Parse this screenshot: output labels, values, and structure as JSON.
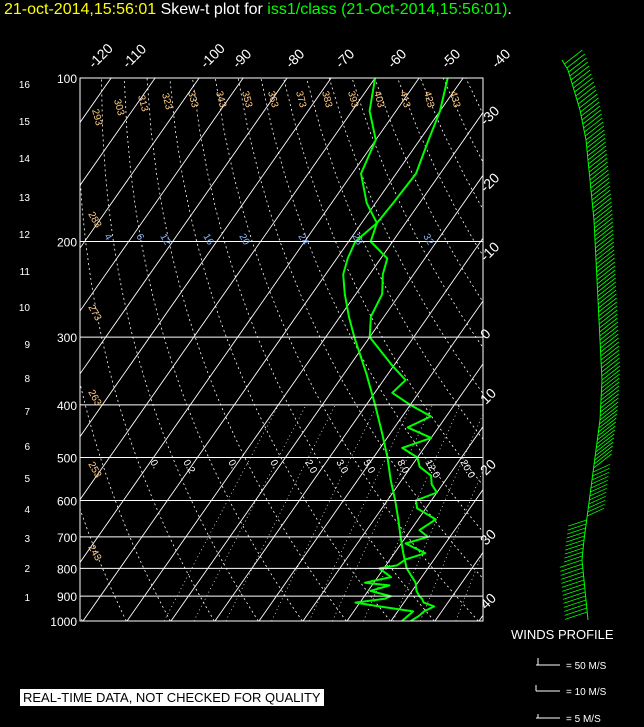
{
  "header": {
    "date_prefix": "21-oct-2014,15:56:01",
    "title_middle": "Skew-t plot for",
    "station_desc": "iss1/class (21-Oct-2014,15:56:01)",
    "period": "."
  },
  "winds": {
    "title": "WINDS PROFILE",
    "legend": [
      "= 50 M/S",
      "= 10 M/S",
      "= 5 M/S"
    ]
  },
  "disclaimer": "REAL-TIME DATA, NOT CHECKED FOR QUALITY",
  "colors": {
    "background": "#000000",
    "trace": "#00ff00",
    "grid": "#ffffff",
    "mixing": "#8ab4ff",
    "potential": "#ffcc88",
    "title_accent": "#ffff00"
  },
  "chart_data": {
    "type": "line",
    "title": "Skew-t plot",
    "pressure_levels_hpa": [
      100,
      200,
      300,
      400,
      500,
      600,
      700,
      800,
      900,
      1000
    ],
    "left_axis_km": [
      "16",
      "15",
      "14",
      "13",
      "12",
      "11",
      "10",
      "9",
      "8",
      "7",
      "6",
      "5",
      "4",
      "3",
      "2",
      "1"
    ],
    "top_temps_c": [
      "-120",
      "-110",
      "-100",
      "-90",
      "-80",
      "-70",
      "-60",
      "-50",
      "-40"
    ],
    "right_temps_c": [
      "-30",
      "-20",
      "-10",
      "0",
      "10",
      "20",
      "30",
      "40"
    ],
    "theta_labels_k": [
      "293",
      "303",
      "313",
      "323",
      "333",
      "343",
      "353",
      "363",
      "373",
      "383",
      "393",
      "403",
      "413",
      "423",
      "433"
    ],
    "theta_left_labels_k": [
      "283",
      "273",
      "263",
      "253",
      "243"
    ],
    "mixing_ratio_upper": [
      "4",
      "6",
      "12",
      "16",
      "20",
      "24",
      "28",
      "32"
    ],
    "mixing_ratio_lower": [
      "0.",
      "0.2",
      "0.",
      "0.",
      "2.0",
      "3.0",
      "5.0",
      "8.0",
      "12.0",
      "20.0"
    ],
    "temp_range_c": [
      -40,
      40
    ],
    "series": [
      {
        "name": "Temperature",
        "p": [
          1000,
          980,
          960,
          940,
          925,
          910,
          900,
          880,
          850,
          800,
          750,
          700,
          650,
          600,
          550,
          500,
          450,
          400,
          350,
          300,
          275,
          250,
          230,
          215,
          200,
          185,
          170,
          150,
          130,
          115,
          100
        ],
        "t": [
          14.5,
          15.5,
          16.0,
          17.5,
          14.5,
          13.5,
          12.5,
          11.0,
          9.5,
          5.2,
          2.0,
          -1.2,
          -4.5,
          -8.2,
          -12.5,
          -16.8,
          -22.0,
          -28.0,
          -35.0,
          -43.5,
          -48.0,
          -52.5,
          -56.0,
          -57.5,
          -58.5,
          -56.5,
          -56.0,
          -55.5,
          -58.0,
          -60.0,
          -63.5
        ]
      },
      {
        "name": "Dewpoint",
        "p": [
          1000,
          980,
          960,
          940,
          925,
          910,
          900,
          880,
          860,
          850,
          830,
          800,
          790,
          770,
          750,
          720,
          700,
          680,
          650,
          620,
          600,
          580,
          560,
          540,
          520,
          500,
          480,
          460,
          440,
          420,
          400,
          380,
          360,
          340,
          300,
          275,
          250,
          230,
          215,
          200,
          185,
          170,
          150,
          130,
          115,
          100
        ],
        "t": [
          12.5,
          13.0,
          13.5,
          5.0,
          -1.0,
          5.0,
          6.0,
          0.5,
          4.0,
          -2.0,
          3.0,
          -1.0,
          2.5,
          3.5,
          7.0,
          1.0,
          5.0,
          2.0,
          4.0,
          -2.0,
          -3.5,
          0.0,
          -2.5,
          -4.0,
          -8.0,
          -10.0,
          -15.0,
          -10.0,
          -17.0,
          -13.5,
          -20.0,
          -26.0,
          -25.0,
          -30.0,
          -40.0,
          -43.0,
          -44.0,
          -47.0,
          -48.5,
          -55.0,
          -56.5,
          -62.0,
          -68.0,
          -70.0,
          -76.0,
          -80.0
        ]
      }
    ]
  }
}
